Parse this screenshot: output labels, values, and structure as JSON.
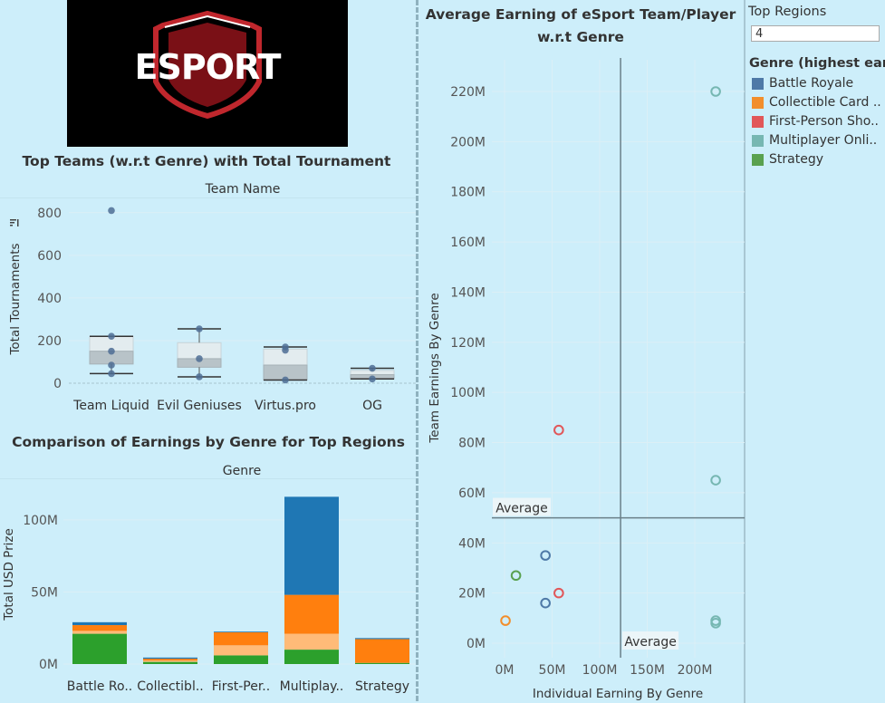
{
  "logo": {
    "text": "ESPORT"
  },
  "box_chart": {
    "title": "Top Teams (w.r.t Genre) with Total Tournament",
    "header": "Team Name",
    "ylabel": "Total Tournaments",
    "sort_icon": "sort-descending-icon",
    "yticks": [
      "0",
      "200",
      "400",
      "600",
      "800"
    ],
    "ylim": [
      0,
      850
    ],
    "teams": [
      "Team Liquid",
      "Evil Geniuses",
      "Virtus.pro",
      "OG"
    ]
  },
  "chart_data": [
    {
      "type": "box",
      "title": "Top Teams (w.r.t Genre) with Total Tournament",
      "xlabel": "Team Name",
      "ylabel": "Total Tournaments",
      "ylim": [
        0,
        850
      ],
      "categories": [
        "Team Liquid",
        "Evil Geniuses",
        "Virtus.pro",
        "OG"
      ],
      "boxes": [
        {
          "whisker_low": 45,
          "q1": 90,
          "median": 150,
          "q3": 220,
          "whisker_high": 220,
          "points": [
            810,
            220,
            150,
            85,
            45
          ]
        },
        {
          "whisker_low": 30,
          "q1": 75,
          "median": 115,
          "q3": 190,
          "whisker_high": 255,
          "points": [
            255,
            115,
            30
          ]
        },
        {
          "whisker_low": 15,
          "q1": 15,
          "median": 85,
          "q3": 160,
          "whisker_high": 170,
          "points": [
            170,
            155,
            15
          ]
        },
        {
          "whisker_low": 20,
          "q1": 20,
          "median": 40,
          "q3": 60,
          "whisker_high": 70,
          "points": [
            70,
            20
          ]
        }
      ]
    },
    {
      "type": "bar",
      "stacked": true,
      "title": "Comparison of Earnings by Genre for Top Regions",
      "xlabel": "Genre",
      "ylabel": "Total USD Prize",
      "ylim": [
        0,
        120000000
      ],
      "categories": [
        "Battle Ro..",
        "Collectibl..",
        "First-Per..",
        "Multiplay..",
        "Strategy"
      ],
      "series": [
        {
          "color": "#2ca02c",
          "values": [
            21000000,
            1500000,
            6000000,
            10000000,
            800000
          ]
        },
        {
          "color": "#ffbb78",
          "values": [
            2000000,
            1000000,
            7000000,
            11000000,
            0
          ]
        },
        {
          "color": "#ff7f0e",
          "values": [
            4000000,
            1200000,
            9000000,
            27000000,
            16500000
          ]
        },
        {
          "color": "#1f77b4",
          "values": [
            2000000,
            800000,
            500000,
            68000000,
            700000
          ]
        }
      ],
      "yticks": [
        "0M",
        "50M",
        "100M"
      ]
    },
    {
      "type": "scatter",
      "title": "Average Earning  of  eSport Team/Player w.r.t Genre",
      "xlabel": "Individual Earning By Genre",
      "ylabel": "Team Earnings By Genre",
      "xlim": [
        -10000000,
        240000000
      ],
      "ylim": [
        -5000000,
        230000000
      ],
      "xticks": [
        "0M",
        "50M",
        "100M",
        "150M",
        "200M"
      ],
      "yticks": [
        "0M",
        "20M",
        "40M",
        "60M",
        "80M",
        "100M",
        "120M",
        "140M",
        "160M",
        "180M",
        "200M",
        "220M"
      ],
      "reference_lines": {
        "x_average": 122000000,
        "y_average": 50000000,
        "label": "Average"
      },
      "points": [
        {
          "genre": "Multiplayer Onli..",
          "x": 222000000,
          "y": 220000000,
          "color": "#76b7b2"
        },
        {
          "genre": "Multiplayer Onli..",
          "x": 222000000,
          "y": 65000000,
          "color": "#76b7b2"
        },
        {
          "genre": "Multiplayer Onli..",
          "x": 222000000,
          "y": 9000000,
          "color": "#76b7b2"
        },
        {
          "genre": "Multiplayer Onli..",
          "x": 222000000,
          "y": 8000000,
          "color": "#76b7b2"
        },
        {
          "genre": "First-Person Sho..",
          "x": 57000000,
          "y": 85000000,
          "color": "#e15759"
        },
        {
          "genre": "First-Person Sho..",
          "x": 57000000,
          "y": 20000000,
          "color": "#e15759"
        },
        {
          "genre": "Battle Royale",
          "x": 43000000,
          "y": 35000000,
          "color": "#4e79a7"
        },
        {
          "genre": "Battle Royale",
          "x": 43000000,
          "y": 16000000,
          "color": "#4e79a7"
        },
        {
          "genre": "Strategy",
          "x": 12000000,
          "y": 27000000,
          "color": "#59a14f"
        },
        {
          "genre": "Collectible Card ..",
          "x": 1000000,
          "y": 9000000,
          "color": "#f28e2b"
        }
      ]
    }
  ],
  "bar_chart": {
    "title": "Comparison of Earnings by Genre for Top Regions",
    "header": "Genre",
    "ylabel": "Total USD Prize"
  },
  "scatter": {
    "title_line1": "Average Earning  of  eSport Team/Player",
    "title_line2": "w.r.t Genre",
    "xlabel": "Individual Earning By Genre",
    "ylabel": "Team Earnings By Genre",
    "avg_label": "Average"
  },
  "sidebar": {
    "filter_title": "Top Regions",
    "filter_value": "4",
    "legend_title": "Genre (highest earn..",
    "legend": [
      {
        "label": "Battle Royale",
        "color": "#4e79a7"
      },
      {
        "label": "Collectible Card ..",
        "color": "#f28e2b"
      },
      {
        "label": "First-Person Sho..",
        "color": "#e15759"
      },
      {
        "label": "Multiplayer Onli..",
        "color": "#76b7b2"
      },
      {
        "label": "Strategy",
        "color": "#59a14f"
      }
    ]
  }
}
